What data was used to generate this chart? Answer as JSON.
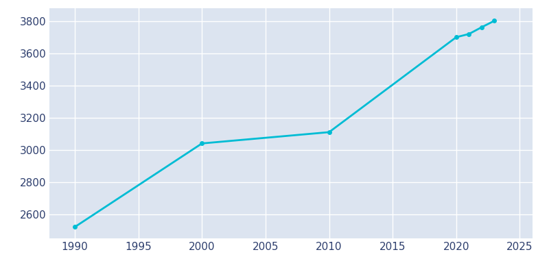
{
  "years": [
    1990,
    2000,
    2010,
    2020,
    2021,
    2022,
    2023
  ],
  "population": [
    2521,
    3040,
    3110,
    3700,
    3720,
    3762,
    3802
  ],
  "line_color": "#00BCD4",
  "bg_color": "#dce4f0",
  "plot_bg_color": "#dce4f0",
  "outer_bg_color": "#ffffff",
  "grid_color": "#ffffff",
  "text_color": "#2e3f6e",
  "xlim": [
    1988,
    2026
  ],
  "ylim": [
    2450,
    3880
  ],
  "xticks": [
    1990,
    1995,
    2000,
    2005,
    2010,
    2015,
    2020,
    2025
  ],
  "yticks": [
    2600,
    2800,
    3000,
    3200,
    3400,
    3600,
    3800
  ],
  "linewidth": 2.0,
  "markersize": 4,
  "tick_labelsize": 11
}
